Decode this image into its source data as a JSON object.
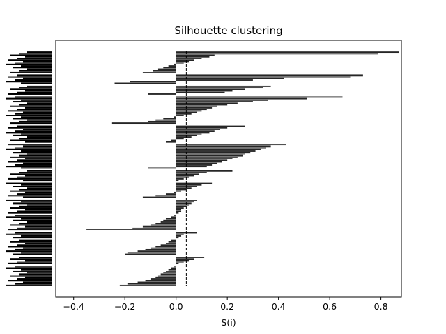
{
  "chart_data": {
    "type": "bar",
    "orientation": "horizontal",
    "title": "Silhouette clustering",
    "xlabel": "S(i)",
    "ylabel": "",
    "xlim": [
      -0.47,
      0.88
    ],
    "xticks": [
      -0.4,
      -0.2,
      0.0,
      0.2,
      0.4,
      0.6,
      0.8
    ],
    "xtick_labels": [
      "−0.4",
      "−0.2",
      "0.0",
      "0.2",
      "0.4",
      "0.6",
      "0.8"
    ],
    "ytick_labels_legible": false,
    "grid": false,
    "legend": "none",
    "mean_line": 0.04,
    "bar_color": "#262626",
    "clusters": [
      [
        0.87,
        0.79,
        0.15,
        0.13,
        0.1,
        0.07,
        0.05,
        0.03,
        -0.01,
        -0.03,
        -0.05,
        -0.07,
        -0.09,
        -0.13
      ],
      [
        0.73,
        0.68,
        0.42,
        0.3,
        -0.18,
        -0.24
      ],
      [
        0.37,
        0.34,
        0.27,
        0.22,
        0.19,
        -0.11
      ],
      [
        0.65,
        0.51,
        0.36,
        0.3,
        0.24,
        0.2,
        0.16,
        0.14,
        0.12,
        0.1,
        0.08,
        0.06,
        0.03,
        -0.01,
        -0.05,
        -0.08,
        -0.11,
        -0.25
      ],
      [
        0.27,
        0.2,
        0.17,
        0.15,
        0.13,
        0.1,
        0.08,
        0.06,
        0.03,
        -0.02,
        -0.04
      ],
      [
        0.43,
        0.37,
        0.35,
        0.33,
        0.31,
        0.29,
        0.27,
        0.26,
        0.24,
        0.22,
        0.2,
        0.18,
        0.16,
        0.14,
        0.12,
        -0.11
      ],
      [
        0.22,
        0.12,
        0.09,
        0.07,
        0.05,
        0.03,
        0.01
      ],
      [
        0.14,
        0.1,
        0.08,
        0.06,
        0.04,
        0.02,
        -0.01,
        -0.04,
        -0.08,
        -0.13
      ],
      [
        0.08,
        0.07,
        0.06,
        0.05,
        0.04,
        0.03,
        0.02,
        0.02,
        0.01
      ],
      [
        -0.01,
        -0.02,
        -0.04,
        -0.05,
        -0.06,
        -0.08,
        -0.1,
        -0.13,
        -0.17,
        -0.35
      ],
      [
        0.08,
        0.03,
        0.02,
        0.01
      ],
      [
        -0.02,
        -0.03,
        -0.04,
        -0.06,
        -0.08,
        -0.1,
        -0.12,
        -0.15,
        -0.19,
        -0.2
      ],
      [
        0.11,
        0.07,
        0.05,
        0.03,
        0.01
      ],
      [
        -0.01,
        -0.02,
        -0.03,
        -0.04,
        -0.05,
        -0.06,
        -0.07,
        -0.08,
        -0.1,
        -0.12,
        -0.15,
        -0.19,
        -0.22
      ]
    ]
  }
}
